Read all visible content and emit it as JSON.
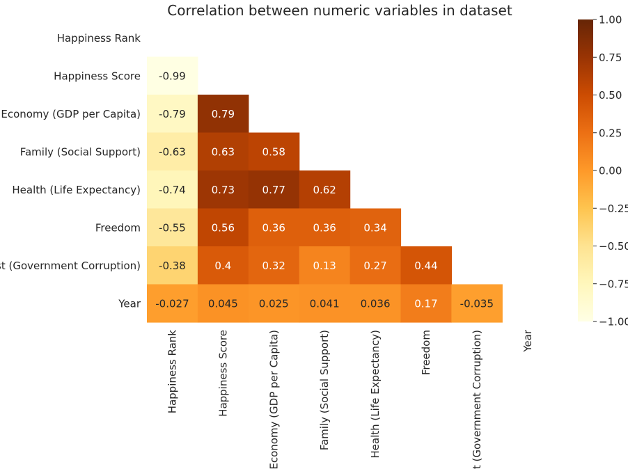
{
  "chart_data": {
    "type": "heatmap",
    "title": "Correlation between numeric variables in dataset",
    "variables": [
      "Happiness Rank",
      "Happiness Score",
      "Economy (GDP per Capita)",
      "Family (Social Support)",
      "Health (Life Expectancy)",
      "Freedom",
      "Trust (Government Corruption)",
      "Year"
    ],
    "mask": "upper-triangle-including-diagonal",
    "values": [
      [
        null,
        null,
        null,
        null,
        null,
        null,
        null,
        null
      ],
      [
        -0.99,
        null,
        null,
        null,
        null,
        null,
        null,
        null
      ],
      [
        -0.79,
        0.79,
        null,
        null,
        null,
        null,
        null,
        null
      ],
      [
        -0.63,
        0.63,
        0.58,
        null,
        null,
        null,
        null,
        null
      ],
      [
        -0.74,
        0.73,
        0.77,
        0.62,
        null,
        null,
        null,
        null
      ],
      [
        -0.55,
        0.56,
        0.36,
        0.36,
        0.34,
        null,
        null,
        null
      ],
      [
        -0.38,
        0.4,
        0.32,
        0.13,
        0.27,
        0.44,
        null,
        null
      ],
      [
        -0.027,
        0.045,
        0.025,
        0.041,
        0.036,
        0.17,
        -0.035,
        null
      ]
    ],
    "value_labels": [
      [
        null,
        null,
        null,
        null,
        null,
        null,
        null,
        null
      ],
      [
        "-0.99",
        null,
        null,
        null,
        null,
        null,
        null,
        null
      ],
      [
        "-0.79",
        "0.79",
        null,
        null,
        null,
        null,
        null,
        null
      ],
      [
        "-0.63",
        "0.63",
        "0.58",
        null,
        null,
        null,
        null,
        null
      ],
      [
        "-0.74",
        "0.73",
        "0.77",
        "0.62",
        null,
        null,
        null,
        null
      ],
      [
        "-0.55",
        "0.56",
        "0.36",
        "0.36",
        "0.34",
        null,
        null,
        null
      ],
      [
        "-0.38",
        "0.4",
        "0.32",
        "0.13",
        "0.27",
        "0.44",
        null,
        null
      ],
      [
        "-0.027",
        "0.045",
        "0.025",
        "0.041",
        "0.036",
        "0.17",
        "-0.035",
        null
      ]
    ],
    "colorbar": {
      "colormap": "YlOrBr",
      "range": [
        -1.0,
        1.0
      ],
      "ticks": [
        1.0,
        0.75,
        0.5,
        0.25,
        0.0,
        -0.25,
        -0.5,
        -0.75,
        -1.0
      ],
      "tick_labels": [
        "1.00",
        "0.75",
        "0.50",
        "0.25",
        "0.00",
        "−0.25",
        "−0.50",
        "−0.75",
        "−1.00"
      ]
    }
  }
}
